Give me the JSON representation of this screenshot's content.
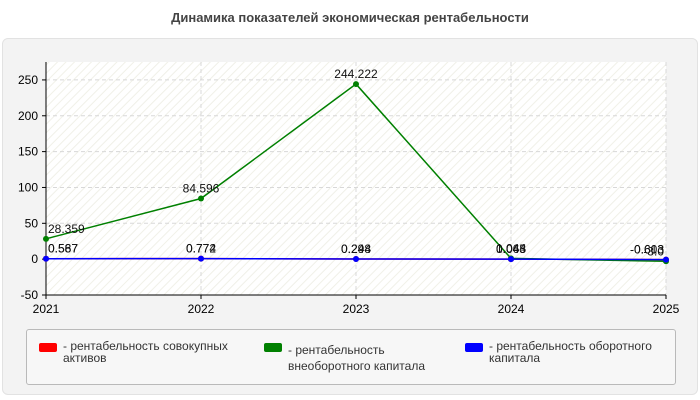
{
  "colors": {
    "series_0": "#ff0000",
    "series_1": "#008000",
    "series_2": "#0000ff",
    "grid": "#d8d8d8",
    "axis": "#000000"
  },
  "chart_data": {
    "type": "line",
    "title": "Динамика показателей экономическая рентабельности",
    "xlabel": "",
    "ylabel": "",
    "x": [
      "2021",
      "2022",
      "2023",
      "2024",
      "2025"
    ],
    "ylim": [
      -50,
      275
    ],
    "yticks": [
      -50,
      0,
      50,
      100,
      150,
      200,
      250
    ],
    "grid": true,
    "legend_position": "bottom",
    "series": [
      {
        "name": "- рентабельность совокупных активов",
        "values": [
          0.567,
          0.774,
          0.298,
          0.045,
          -0.603
        ],
        "labels": [
          "0.567",
          "0.774",
          "0.298",
          "0.045",
          "-0.603"
        ]
      },
      {
        "name": "- рентабельность внеоборотного капитала",
        "values": [
          28.359,
          84.596,
          244.222,
          1.044,
          -3.0
        ],
        "labels": [
          "28.359",
          "84.596",
          "244.222",
          "1.044",
          "-3.0"
        ]
      },
      {
        "name": "- рентабельность оборотного капитала",
        "values": [
          0.587,
          0.772,
          0.244,
          0.063,
          -0.613
        ],
        "labels": [
          "0.587",
          "0.772",
          "0.244",
          "0.063",
          "-0.613"
        ]
      }
    ]
  }
}
